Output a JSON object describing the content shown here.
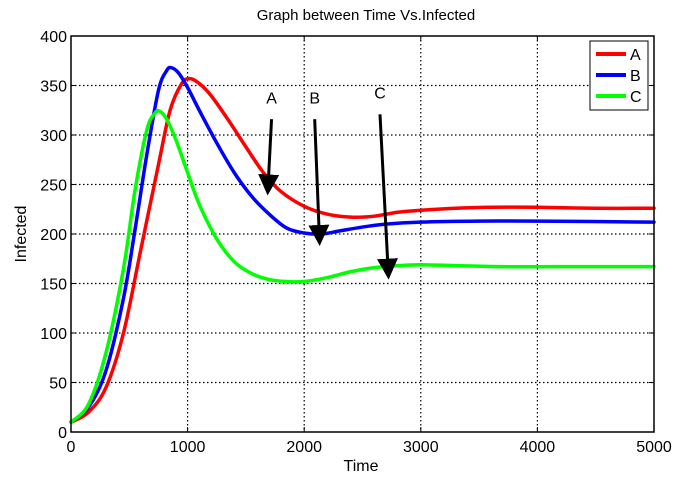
{
  "chart_data": {
    "type": "line",
    "title": "Graph between Time Vs.Infected",
    "xlabel": "Time",
    "ylabel": "Infected",
    "xlim": [
      0,
      5000
    ],
    "ylim": [
      0,
      400
    ],
    "xticks": [
      0,
      1000,
      2000,
      3000,
      4000,
      5000
    ],
    "yticks": [
      0,
      50,
      100,
      150,
      200,
      250,
      300,
      350,
      400
    ],
    "grid": true,
    "legend_position": "top-right",
    "series": [
      {
        "name": "A",
        "color": "#ff0000",
        "points": [
          [
            0,
            10
          ],
          [
            150,
            20
          ],
          [
            300,
            45
          ],
          [
            450,
            100
          ],
          [
            600,
            185
          ],
          [
            750,
            270
          ],
          [
            850,
            325
          ],
          [
            950,
            352
          ],
          [
            1020,
            357
          ],
          [
            1100,
            352
          ],
          [
            1200,
            340
          ],
          [
            1350,
            315
          ],
          [
            1500,
            288
          ],
          [
            1650,
            262
          ],
          [
            1800,
            243
          ],
          [
            2000,
            228
          ],
          [
            2200,
            220
          ],
          [
            2400,
            217
          ],
          [
            2600,
            218
          ],
          [
            2800,
            222
          ],
          [
            3000,
            224
          ],
          [
            3300,
            226
          ],
          [
            3600,
            227
          ],
          [
            4000,
            227
          ],
          [
            4500,
            226
          ],
          [
            5000,
            226
          ]
        ]
      },
      {
        "name": "B",
        "color": "#0000ff",
        "points": [
          [
            0,
            10
          ],
          [
            150,
            25
          ],
          [
            300,
            62
          ],
          [
            450,
            135
          ],
          [
            550,
            205
          ],
          [
            650,
            280
          ],
          [
            750,
            345
          ],
          [
            820,
            365
          ],
          [
            860,
            368
          ],
          [
            920,
            363
          ],
          [
            1000,
            348
          ],
          [
            1100,
            325
          ],
          [
            1250,
            292
          ],
          [
            1400,
            262
          ],
          [
            1550,
            238
          ],
          [
            1700,
            220
          ],
          [
            1850,
            206
          ],
          [
            2000,
            201
          ],
          [
            2150,
            200
          ],
          [
            2300,
            203
          ],
          [
            2500,
            207
          ],
          [
            2700,
            210
          ],
          [
            3000,
            212
          ],
          [
            3500,
            213
          ],
          [
            4000,
            213
          ],
          [
            5000,
            212
          ]
        ]
      },
      {
        "name": "C",
        "color": "#00ff00",
        "points": [
          [
            0,
            10
          ],
          [
            150,
            28
          ],
          [
            300,
            80
          ],
          [
            450,
            165
          ],
          [
            550,
            245
          ],
          [
            650,
            305
          ],
          [
            720,
            322
          ],
          [
            760,
            324
          ],
          [
            820,
            316
          ],
          [
            900,
            295
          ],
          [
            1000,
            262
          ],
          [
            1100,
            230
          ],
          [
            1250,
            195
          ],
          [
            1400,
            172
          ],
          [
            1550,
            160
          ],
          [
            1700,
            154
          ],
          [
            1850,
            152
          ],
          [
            2000,
            152
          ],
          [
            2200,
            156
          ],
          [
            2400,
            162
          ],
          [
            2600,
            166
          ],
          [
            2800,
            168
          ],
          [
            3000,
            169
          ],
          [
            3300,
            168
          ],
          [
            3700,
            167
          ],
          [
            4200,
            167
          ],
          [
            5000,
            167
          ]
        ]
      }
    ],
    "annotations": [
      {
        "text": "A",
        "label_at": [
          1720,
          330
        ],
        "arrow_from": [
          1720,
          322
        ],
        "arrow_to": [
          1690,
          248
        ]
      },
      {
        "text": "B",
        "label_at": [
          2090,
          330
        ],
        "arrow_from": [
          2090,
          322
        ],
        "arrow_to": [
          2130,
          197
        ]
      },
      {
        "text": "C",
        "label_at": [
          2650,
          335
        ],
        "arrow_from": [
          2650,
          327
        ],
        "arrow_to": [
          2720,
          163
        ]
      }
    ]
  }
}
